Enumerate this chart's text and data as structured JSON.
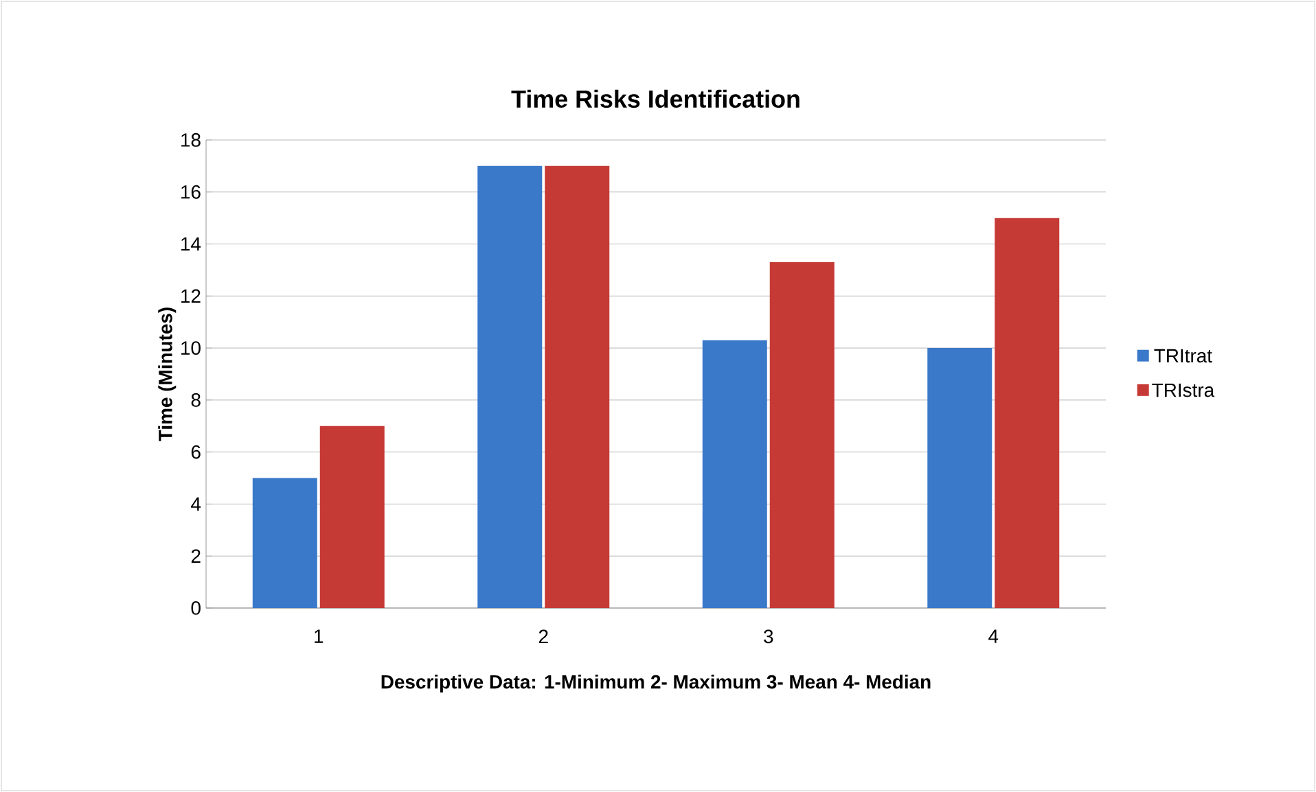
{
  "chart_data": {
    "type": "bar",
    "title": "Time Risks Identification",
    "xlabel": "Descriptive Data: 1-Minimum 2- Maximum 3- Mean 4- Median",
    "ylabel": "Time (Minutes)",
    "categories": [
      "1",
      "2",
      "3",
      "4"
    ],
    "series": [
      {
        "name": "TRItrat",
        "color": "#3a78c9",
        "values": [
          5,
          17,
          10.3,
          10
        ]
      },
      {
        "name": "TRIstra",
        "color": "#c63a35",
        "values": [
          7,
          17,
          13.3,
          15
        ]
      }
    ],
    "ylim": [
      0,
      18
    ],
    "yticks": [
      0,
      2,
      4,
      6,
      8,
      10,
      12,
      14,
      16,
      18
    ],
    "grid": "y",
    "legend": "right"
  }
}
